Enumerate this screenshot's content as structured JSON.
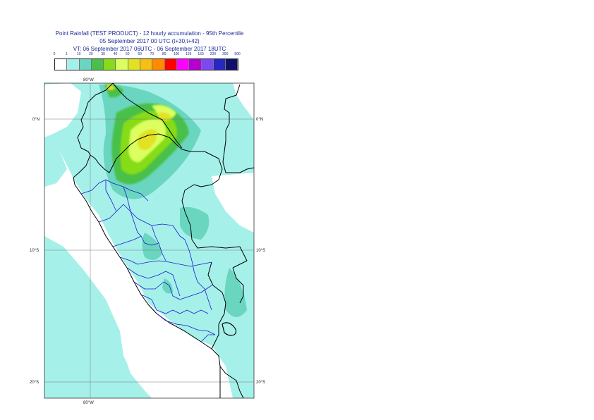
{
  "title": {
    "line1": "Point Rainfall (TEST PRODUCT) - 12 hourly accumulation - 95th Percentile",
    "line2": "05 September 2017 00 UTC (t+30,t+42)",
    "line3": "VT: 06 September 2017 06UTC - 06 September 2017 18UTC"
  },
  "legend": {
    "thresholds": [
      "0",
      "1",
      "10",
      "20",
      "30",
      "40",
      "50",
      "60",
      "70",
      "80",
      "100",
      "125",
      "150",
      "200",
      "300",
      "500"
    ],
    "colors": [
      "#ffffff",
      "#a6f0ea",
      "#6ad6c0",
      "#48c04a",
      "#86dc18",
      "#dcff60",
      "#e2e224",
      "#f5c010",
      "#ff8a00",
      "#ff0000",
      "#ff00ff",
      "#b400d2",
      "#7c48f0",
      "#2828c0",
      "#10106a"
    ]
  },
  "map": {
    "axis_labels": {
      "lon_top": "80°W",
      "lon_bottom": "80°W",
      "lat_0_left": "0°N",
      "lat_0_right": "0°N",
      "lat_10_left": "10°S",
      "lat_10_right": "10°S",
      "lat_20_left": "20°S",
      "lat_20_right": "20°S"
    }
  }
}
